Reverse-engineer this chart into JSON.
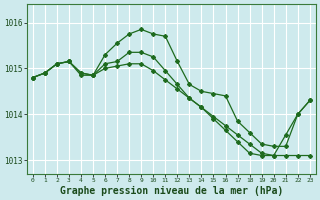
{
  "background_color": "#ceeaed",
  "grid_color": "#ffffff",
  "line_color": "#1e6b1e",
  "x_labels": [
    "0",
    "1",
    "2",
    "3",
    "4",
    "5",
    "6",
    "7",
    "8",
    "9",
    "10",
    "11",
    "12",
    "13",
    "14",
    "15",
    "16",
    "17",
    "18",
    "19",
    "20",
    "21",
    "22",
    "23"
  ],
  "series1": [
    1014.8,
    1014.9,
    1015.1,
    1015.15,
    1014.9,
    1014.85,
    1015.3,
    1015.55,
    1015.75,
    1015.85,
    1015.75,
    1015.7,
    1015.15,
    1014.65,
    1014.5,
    1014.45,
    1014.4,
    1013.85,
    1013.6,
    1013.35,
    1013.3,
    1013.3,
    1014.0,
    1014.3
  ],
  "series2": [
    1014.8,
    1014.9,
    1015.1,
    1015.15,
    1014.9,
    1014.85,
    1015.1,
    1015.15,
    1015.35,
    1015.35,
    1015.25,
    1014.95,
    1014.65,
    1014.35,
    1014.15,
    1013.9,
    1013.65,
    1013.4,
    1013.15,
    1013.1,
    1013.1,
    1013.55,
    1014.0,
    1014.3
  ],
  "series3": [
    1014.8,
    1014.9,
    1015.1,
    1015.15,
    1014.85,
    1014.85,
    1015.0,
    1015.05,
    1015.1,
    1015.1,
    1014.95,
    1014.75,
    1014.55,
    1014.35,
    1014.15,
    1013.95,
    1013.75,
    1013.55,
    1013.35,
    1013.15,
    1013.1,
    1013.1,
    1013.1,
    1013.1
  ],
  "ylim": [
    1012.7,
    1016.4
  ],
  "yticks": [
    1013,
    1014,
    1015,
    1016
  ],
  "title": "Graphe pression niveau de la mer (hPa)",
  "title_fontsize": 7,
  "marker": "D",
  "markersize": 2,
  "linewidth": 0.9
}
